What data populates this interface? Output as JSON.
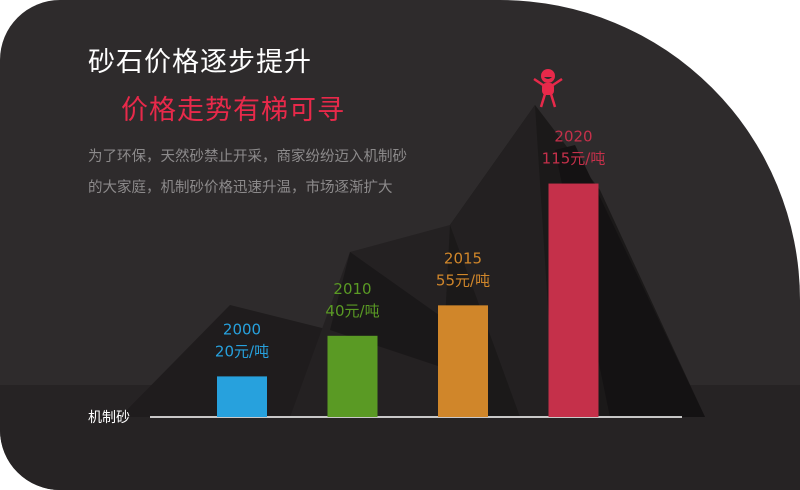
{
  "header": {
    "title": "砂石价格逐步提升",
    "subtitle": "价格走势有梯可寻",
    "description": "为了环保，天然砂禁止开采，商家纷纷迈入机制砂的大家庭，机制砂价格迅速升温，市场逐渐扩大"
  },
  "chart_data": {
    "type": "bar",
    "xlabel": "机制砂",
    "categories": [
      "2000",
      "2010",
      "2015",
      "2020"
    ],
    "values": [
      20,
      40,
      55,
      115
    ],
    "value_labels": [
      "20元/吨",
      "40元/吨",
      "55元/吨",
      "115元/吨"
    ],
    "colors": [
      "#27a1dd",
      "#5a9a24",
      "#d0862a",
      "#c5304a"
    ],
    "unit": "元/吨"
  },
  "icon": "cheering-person-icon",
  "accent": "#e8294a"
}
